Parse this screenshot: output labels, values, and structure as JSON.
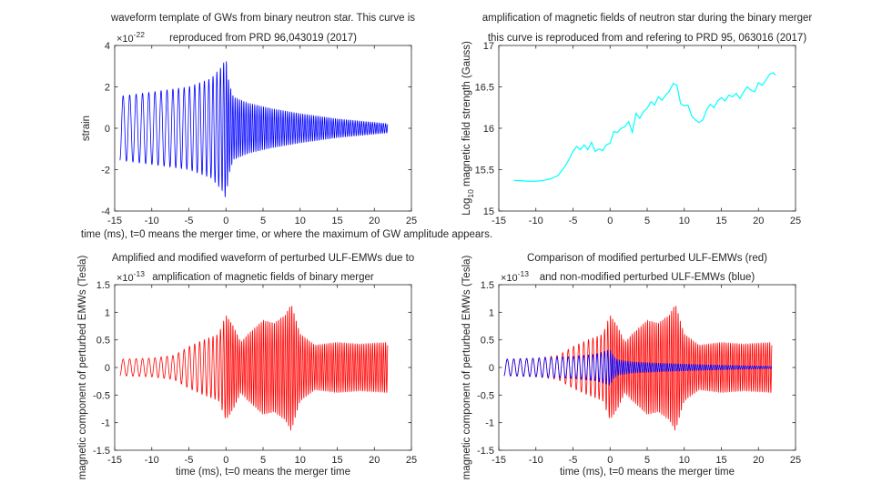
{
  "chart_data": [
    {
      "type": "line",
      "title": [
        "waveform template of GWs from binary neutron star. This curve is",
        "reproduced from PRD 96,043019 (2017)"
      ],
      "xlabel": "time (ms), t=0 means the merger time, or where the maximum of GW amplitude appears.",
      "ylabel": "strain",
      "exponent": "×10",
      "exponent_power": "-22",
      "xlim": [
        -15,
        25
      ],
      "ylim": [
        -4,
        4
      ],
      "xticks": [
        -15,
        -10,
        -5,
        0,
        5,
        10,
        15,
        20,
        25
      ],
      "yticks": [
        -4,
        -2,
        0,
        2,
        4
      ],
      "xtick_labels": [
        "-15",
        "-10",
        "-5",
        "0",
        "5",
        "10",
        "15",
        "20",
        "25"
      ],
      "ytick_labels": [
        "-4",
        "-2",
        "0",
        "2",
        "4"
      ],
      "series": [
        {
          "color": "#0000ff",
          "kind": "gw",
          "t_start": -14.3,
          "t_end": 21.8,
          "envelope": [
            [
              -14.3,
              1.55
            ],
            [
              -10,
              1.75
            ],
            [
              -5,
              2.0
            ],
            [
              -2,
              2.4
            ],
            [
              -0.5,
              3.0
            ],
            [
              0,
              3.4
            ],
            [
              0.4,
              2.2
            ],
            [
              1,
              1.5
            ],
            [
              3,
              1.2
            ],
            [
              6,
              0.95
            ],
            [
              10,
              0.7
            ],
            [
              15,
              0.45
            ],
            [
              21.8,
              0.22
            ]
          ]
        }
      ]
    },
    {
      "type": "line",
      "title": [
        "amplification of magnetic fields of neutron star during the binary merger",
        "this curve is reproduced from and refering to PRD 95, 063016 (2017)"
      ],
      "xlabel": "",
      "ylabel": "magnetic field strength (Gauss)",
      "ylabel_prefix": "Log",
      "ylabel_sub": "10",
      "xlim": [
        -15,
        25
      ],
      "ylim": [
        15,
        17
      ],
      "xticks": [
        -15,
        -10,
        -5,
        0,
        5,
        10,
        15,
        20,
        25
      ],
      "yticks": [
        15,
        15.5,
        16,
        16.5,
        17
      ],
      "xtick_labels": [
        "-15",
        "-10",
        "-5",
        "0",
        "5",
        "10",
        "15",
        "20",
        "25"
      ],
      "ytick_labels": [
        "15",
        "15.5",
        "16",
        "16.5",
        "17"
      ],
      "series": [
        {
          "color": "#00ffff",
          "kind": "points",
          "x": [
            -13,
            -12,
            -11,
            -10,
            -9,
            -8,
            -7,
            -6,
            -5.5,
            -5,
            -4.5,
            -4,
            -3.5,
            -3,
            -2.5,
            -2,
            -1.5,
            -1,
            -0.5,
            0,
            0.5,
            1,
            1.5,
            2,
            2.5,
            3,
            3.5,
            4,
            4.5,
            5,
            5.5,
            6,
            6.5,
            7,
            7.5,
            8,
            8.5,
            9,
            9.5,
            10,
            10.5,
            11,
            11.5,
            12,
            12.5,
            13,
            13.5,
            14,
            14.5,
            15,
            15.5,
            16,
            16.5,
            17,
            17.5,
            18,
            18.5,
            19,
            19.5,
            20,
            20.5,
            21,
            21.5,
            22,
            22.3
          ],
          "y": [
            15.37,
            15.365,
            15.36,
            15.36,
            15.37,
            15.39,
            15.43,
            15.55,
            15.63,
            15.72,
            15.78,
            15.74,
            15.8,
            15.74,
            15.83,
            15.72,
            15.75,
            15.73,
            15.8,
            15.82,
            15.96,
            15.95,
            16.0,
            16.02,
            16.08,
            15.95,
            16.18,
            16.12,
            16.2,
            16.24,
            16.32,
            16.28,
            16.38,
            16.34,
            16.4,
            16.45,
            16.54,
            16.52,
            16.3,
            16.27,
            16.28,
            16.15,
            16.1,
            16.07,
            16.1,
            16.22,
            16.29,
            16.25,
            16.33,
            16.37,
            16.33,
            16.4,
            16.38,
            16.42,
            16.36,
            16.44,
            16.5,
            16.46,
            16.44,
            16.55,
            16.52,
            16.58,
            16.65,
            16.67,
            16.64
          ]
        }
      ]
    },
    {
      "type": "line",
      "title": [
        "Amplified and modified waveform of perturbed ULF-EMWs due to",
        "amplification of magnetic fields of binary merger"
      ],
      "xlabel": "time (ms), t=0 means the merger time",
      "ylabel": "magnetic component of perturbed EMWs (Tesla)",
      "exponent": "×10",
      "exponent_power": "-13",
      "xlim": [
        -15,
        25
      ],
      "ylim": [
        -1.5,
        1.5
      ],
      "xticks": [
        -15,
        -10,
        -5,
        0,
        5,
        10,
        15,
        20,
        25
      ],
      "yticks": [
        -1.5,
        -1,
        -0.5,
        0,
        0.5,
        1,
        1.5
      ],
      "xtick_labels": [
        "-15",
        "-10",
        "-5",
        "0",
        "5",
        "10",
        "15",
        "20",
        "25"
      ],
      "ytick_labels": [
        "-1.5",
        "-1",
        "-0.5",
        "0",
        "0.5",
        "1",
        "1.5"
      ],
      "series": [
        {
          "color": "#ff0000",
          "kind": "gw",
          "t_start": -14.3,
          "t_end": 21.8,
          "envelope": [
            [
              -14.3,
              0.15
            ],
            [
              -10,
              0.17
            ],
            [
              -7,
              0.22
            ],
            [
              -5,
              0.38
            ],
            [
              -3,
              0.5
            ],
            [
              -1,
              0.6
            ],
            [
              0,
              0.95
            ],
            [
              1,
              0.75
            ],
            [
              2,
              0.45
            ],
            [
              3,
              0.6
            ],
            [
              5,
              0.85
            ],
            [
              6.5,
              0.8
            ],
            [
              8,
              0.95
            ],
            [
              8.8,
              1.15
            ],
            [
              10,
              0.6
            ],
            [
              12,
              0.4
            ],
            [
              15,
              0.45
            ],
            [
              18,
              0.42
            ],
            [
              21.8,
              0.45
            ]
          ]
        }
      ]
    },
    {
      "type": "line",
      "title": [
        "Comparison of modified perturbed ULF-EMWs (red)",
        "and non-modified perturbed ULF-EMWs (blue)"
      ],
      "xlabel": "time (ms), t=0 means the merger time",
      "ylabel": "magnetic component of perturbed EMWs (Tesla)",
      "exponent": "×10",
      "exponent_power": "-13",
      "xlim": [
        -15,
        25
      ],
      "ylim": [
        -1.5,
        1.5
      ],
      "xticks": [
        -15,
        -10,
        -5,
        0,
        5,
        10,
        15,
        20,
        25
      ],
      "yticks": [
        -1.5,
        -1,
        -0.5,
        0,
        0.5,
        1,
        1.5
      ],
      "xtick_labels": [
        "-15",
        "-10",
        "-5",
        "0",
        "5",
        "10",
        "15",
        "20",
        "25"
      ],
      "ytick_labels": [
        "-1.5",
        "-1",
        "-0.5",
        "0",
        "0.5",
        "1",
        "1.5"
      ],
      "series": [
        {
          "color": "#ff0000",
          "kind": "gw",
          "t_start": -14.3,
          "t_end": 21.8,
          "envelope": [
            [
              -14.3,
              0.15
            ],
            [
              -10,
              0.17
            ],
            [
              -7,
              0.22
            ],
            [
              -5,
              0.38
            ],
            [
              -3,
              0.5
            ],
            [
              -1,
              0.6
            ],
            [
              0,
              0.95
            ],
            [
              1,
              0.75
            ],
            [
              2,
              0.45
            ],
            [
              3,
              0.6
            ],
            [
              5,
              0.85
            ],
            [
              6.5,
              0.8
            ],
            [
              8,
              0.95
            ],
            [
              8.8,
              1.15
            ],
            [
              10,
              0.6
            ],
            [
              12,
              0.4
            ],
            [
              15,
              0.45
            ],
            [
              18,
              0.42
            ],
            [
              21.8,
              0.45
            ]
          ]
        },
        {
          "color": "#0000ff",
          "kind": "gw",
          "t_start": -14.3,
          "t_end": 21.8,
          "envelope": [
            [
              -14.3,
              0.15
            ],
            [
              -10,
              0.17
            ],
            [
              -5,
              0.2
            ],
            [
              -2,
              0.24
            ],
            [
              0,
              0.32
            ],
            [
              0.5,
              0.2
            ],
            [
              1,
              0.14
            ],
            [
              3,
              0.1
            ],
            [
              6,
              0.08
            ],
            [
              10,
              0.06
            ],
            [
              15,
              0.04
            ],
            [
              21.8,
              0.02
            ]
          ]
        }
      ]
    }
  ]
}
